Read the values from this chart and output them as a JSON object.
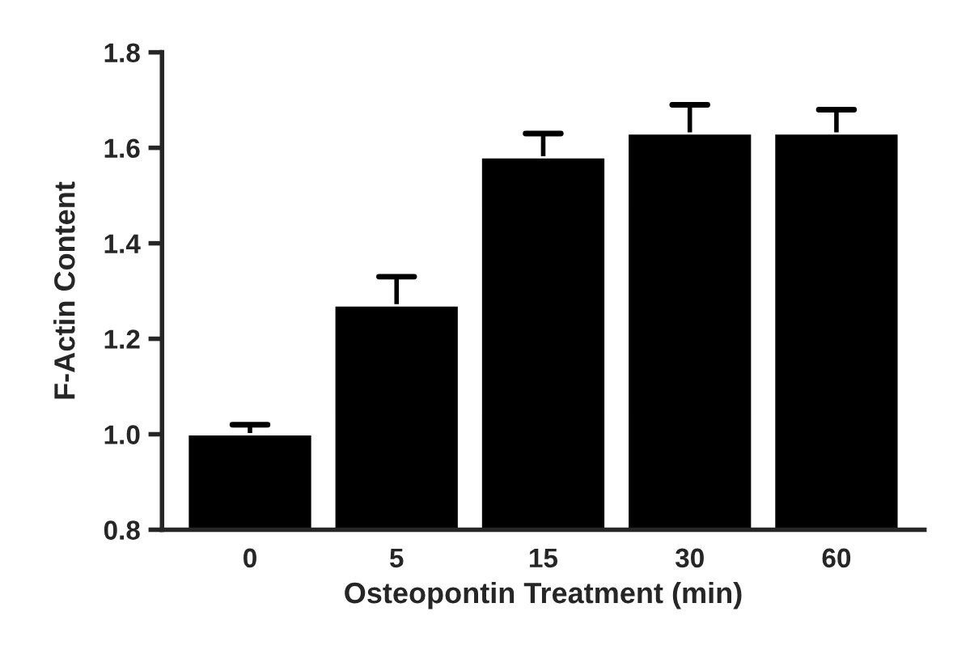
{
  "chart_data": {
    "type": "bar",
    "xlabel": "Osteopontin Treatment (min)",
    "ylabel": "F-Actin Content",
    "categories": [
      "0",
      "5",
      "15",
      "30",
      "60"
    ],
    "values": [
      1.0,
      1.27,
      1.58,
      1.63,
      1.63
    ],
    "errors": [
      [
        1.0,
        1.02
      ],
      [
        1.27,
        1.33
      ],
      [
        1.58,
        1.63
      ],
      [
        1.63,
        1.69
      ],
      [
        1.63,
        1.68
      ]
    ],
    "color": "#000000",
    "ylim": [
      0.8,
      1.8
    ],
    "yticks": [
      {
        "value": 0.8,
        "label": "0.8"
      },
      {
        "value": 1.0,
        "label": "1.0"
      },
      {
        "value": 1.2,
        "label": "1.2"
      },
      {
        "value": 1.4,
        "label": "1.4"
      },
      {
        "value": 1.6,
        "label": "1.6"
      },
      {
        "value": 1.8,
        "label": "1.8"
      }
    ],
    "grid": false,
    "legend": false
  }
}
